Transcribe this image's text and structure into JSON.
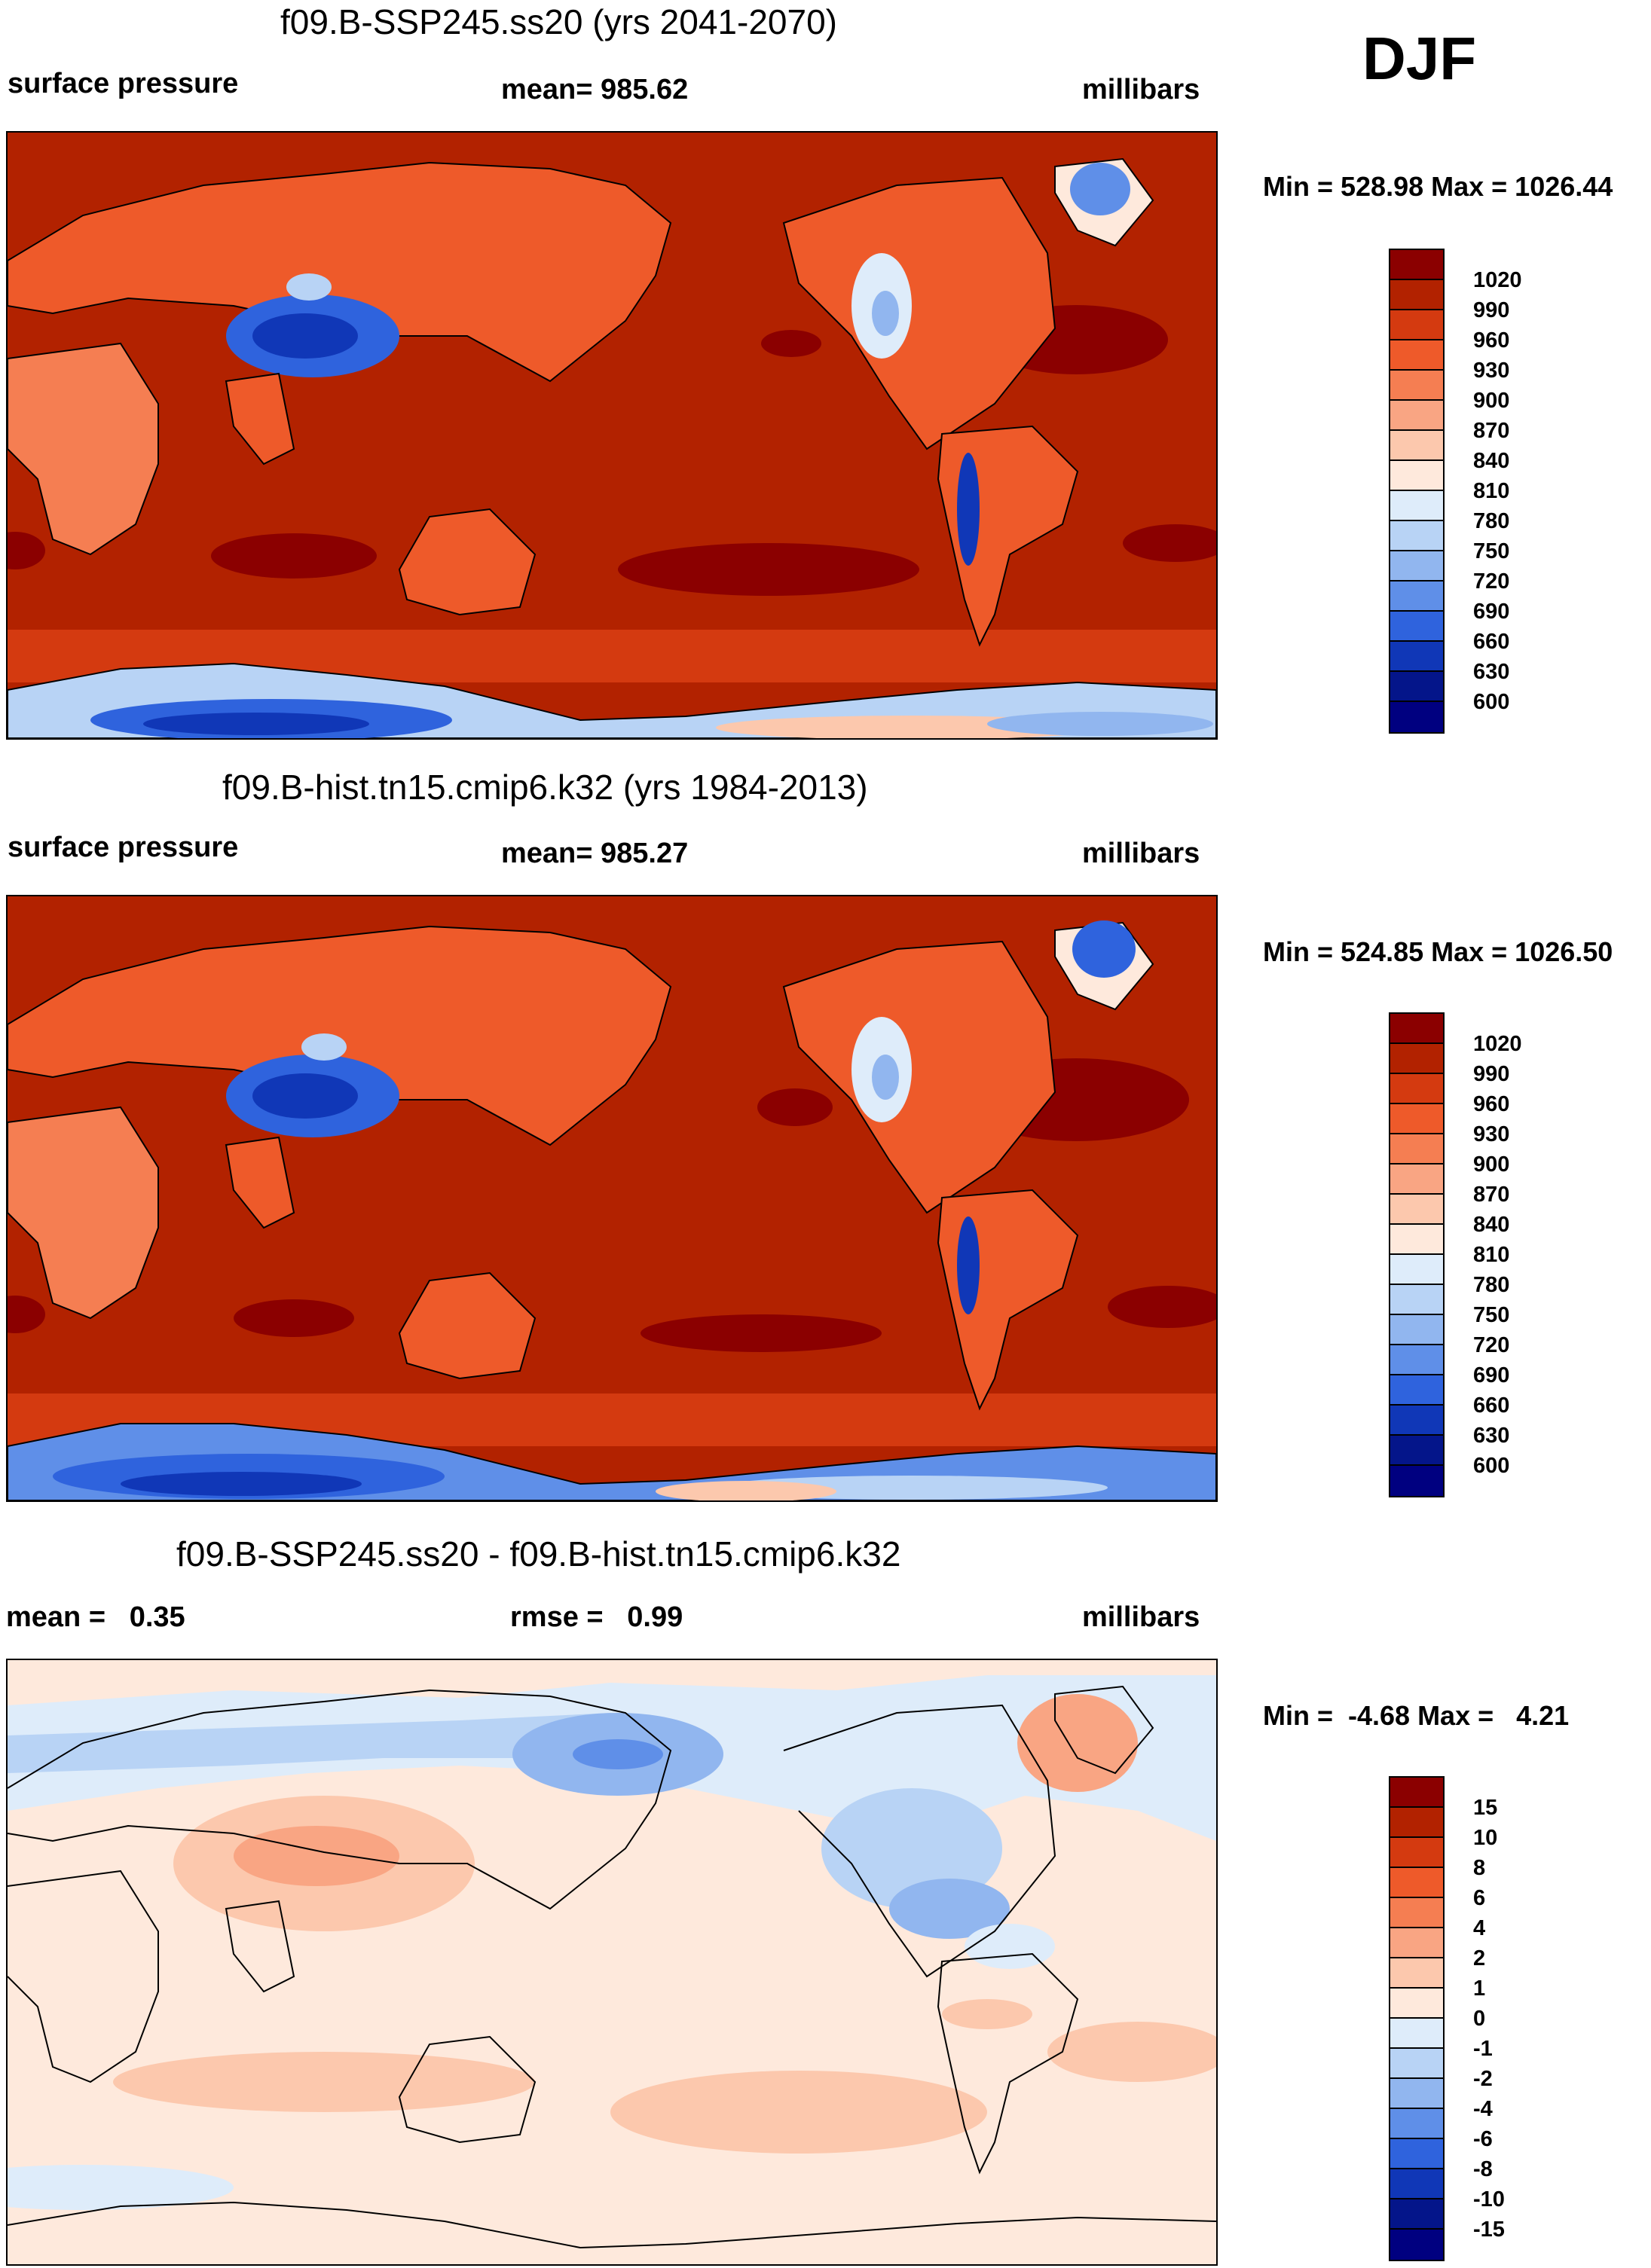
{
  "season": "DJF",
  "panels": [
    {
      "title": "f09.B-SSP245.ss20 (yrs 2041-2070)",
      "left_label": "surface pressure",
      "center_label": "mean= 985.62",
      "right_label": "millibars",
      "minmax": "Min = 528.98 Max = 1026.44",
      "colorbar": {
        "labels": [
          "1020",
          "990",
          "960",
          "930",
          "900",
          "870",
          "840",
          "810",
          "780",
          "750",
          "720",
          "690",
          "660",
          "630",
          "600"
        ],
        "colors": [
          "#8b0000",
          "#b22200",
          "#d43a10",
          "#ee5a2a",
          "#f57e52",
          "#f9a583",
          "#fcc8ad",
          "#fee9dc",
          "#deecfa",
          "#b8d3f5",
          "#91b6ef",
          "#5f8fe8",
          "#2f63dd",
          "#1037b7",
          "#04158a",
          "#000080"
        ]
      }
    },
    {
      "title": "f09.B-hist.tn15.cmip6.k32 (yrs 1984-2013)",
      "left_label": "surface pressure",
      "center_label": "mean= 985.27",
      "right_label": "millibars",
      "minmax": "Min = 524.85 Max = 1026.50",
      "colorbar": {
        "labels": [
          "1020",
          "990",
          "960",
          "930",
          "900",
          "870",
          "840",
          "810",
          "780",
          "750",
          "720",
          "690",
          "660",
          "630",
          "600"
        ],
        "colors": [
          "#8b0000",
          "#b22200",
          "#d43a10",
          "#ee5a2a",
          "#f57e52",
          "#f9a583",
          "#fcc8ad",
          "#fee9dc",
          "#deecfa",
          "#b8d3f5",
          "#91b6ef",
          "#5f8fe8",
          "#2f63dd",
          "#1037b7",
          "#04158a",
          "#000080"
        ]
      }
    },
    {
      "title": "f09.B-SSP245.ss20 - f09.B-hist.tn15.cmip6.k32",
      "left_label": "mean =   0.35",
      "center_label": "rmse =   0.99",
      "right_label": "millibars",
      "minmax": "Min =  -4.68 Max =   4.21",
      "colorbar": {
        "labels": [
          "15",
          "10",
          "8",
          "6",
          "4",
          "2",
          "1",
          "0",
          "-1",
          "-2",
          "-4",
          "-6",
          "-8",
          "-10",
          "-15"
        ],
        "colors": [
          "#8b0000",
          "#b22200",
          "#d43a10",
          "#ee5a2a",
          "#f57e52",
          "#f9a583",
          "#fcc8ad",
          "#fee9dc",
          "#deecfa",
          "#b8d3f5",
          "#91b6ef",
          "#5f8fe8",
          "#2f63dd",
          "#1037b7",
          "#04158a",
          "#000080"
        ]
      }
    }
  ]
}
